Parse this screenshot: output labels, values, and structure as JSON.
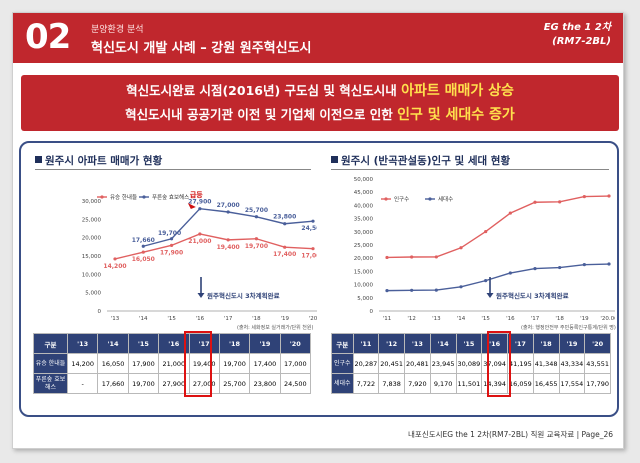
{
  "header": {
    "number": "02",
    "category": "분양환경 분석",
    "title": "혁신도시 개발 사례 – 강원 원주혁신도시",
    "project_line1": "EG the 1 2차",
    "project_line2": "(RM7-2BL)"
  },
  "banner": {
    "line1_prefix": "혁신도시완료 시점(2016년) 구도심 및 혁신도시내 ",
    "line1_highlight": "아파트 매매가 상승",
    "line2_prefix": "혁신도시내 공공기관 이전 및 기업체 이전으로 인한 ",
    "line2_highlight": "인구 및 세대수 증가"
  },
  "left": {
    "title": "원주시 아파트 매매가 현황",
    "callout": "원주혁신도시 3차계획완료",
    "spike_label": "급등",
    "source": "(출처: 세화정보 실거래가/단위 천원)",
    "table": {
      "corner": "구분",
      "years": [
        "'13",
        "'14",
        "'15",
        "'16",
        "'17",
        "'18",
        "'19",
        "'20"
      ],
      "rows": [
        {
          "label": "유승 한내들",
          "cells": [
            "14,200",
            "16,050",
            "17,900",
            "21,000",
            "19,400",
            "19,700",
            "17,400",
            "17,000"
          ]
        },
        {
          "label": "푸른숲 효보해스",
          "cells": [
            "-",
            "17,660",
            "19,700",
            "27,900",
            "27,000",
            "25,700",
            "23,800",
            "24,500"
          ]
        }
      ]
    }
  },
  "right": {
    "title": "원주시 (반곡관설동)인구 및 세대 현황",
    "callout": "원주혁신도시 3차계획완료",
    "source": "(출처: 행정안전부 주민등록인구통계/단위 명)",
    "table": {
      "corner": "구분",
      "years": [
        "'11",
        "'12",
        "'13",
        "'14",
        "'15",
        "'16",
        "'17",
        "'18",
        "'19",
        "'20"
      ],
      "rows": [
        {
          "label": "인구수",
          "cells": [
            "20,287",
            "20,451",
            "20,481",
            "23,945",
            "30,089",
            "37,094",
            "41,195",
            "41,348",
            "43,334",
            "43,551"
          ]
        },
        {
          "label": "세대수",
          "cells": [
            "7,722",
            "7,838",
            "7,920",
            "9,170",
            "11,501",
            "14,394",
            "16,059",
            "16,455",
            "17,554",
            "17,790"
          ]
        }
      ]
    }
  },
  "footer": {
    "text": "내포신도시EG the 1 2차(RM7-2BL) 직원 교육자료 | Page_26"
  },
  "colors": {
    "brand_red": "#c0272d",
    "navy": "#2f4277",
    "series_red": "#e06060",
    "series_blue": "#4a5f9a",
    "highlight_red": "#d11111"
  },
  "chart_data": [
    {
      "type": "line",
      "title": "원주시 아파트 매매가 현황",
      "categories": [
        "'13",
        "'14",
        "'15",
        "'16",
        "'17",
        "'18",
        "'19",
        "'20"
      ],
      "series": [
        {
          "name": "유승 한내들",
          "values": [
            14200,
            16050,
            17900,
            21000,
            19400,
            19700,
            17400,
            17000
          ]
        },
        {
          "name": "푸른숲 효보해스",
          "values": [
            null,
            17660,
            19700,
            27900,
            27000,
            25700,
            23800,
            24500
          ]
        }
      ],
      "yticks": [
        "0",
        "5,000",
        "10,000",
        "15,000",
        "20,000",
        "25,000",
        "30,000"
      ],
      "ylim": [
        0,
        30000
      ],
      "legend": "top-left",
      "grid": false
    },
    {
      "type": "line",
      "title": "원주시 (반곡관설동)인구 및 세대 현황",
      "categories": [
        "'11",
        "'12",
        "'13",
        "'14",
        "'15",
        "'16",
        "'17",
        "'18",
        "'19",
        "'20.06"
      ],
      "series": [
        {
          "name": "인구수",
          "values": [
            20287,
            20451,
            20481,
            23945,
            30089,
            37094,
            41195,
            41348,
            43334,
            43551
          ]
        },
        {
          "name": "세대수",
          "values": [
            7722,
            7838,
            7920,
            9170,
            11501,
            14394,
            16059,
            16455,
            17554,
            17790
          ]
        }
      ],
      "yticks": [
        "0",
        "5,000",
        "10,000",
        "15,000",
        "20,000",
        "25,000",
        "30,000",
        "35,000",
        "40,000",
        "45,000",
        "50,000"
      ],
      "ylim": [
        0,
        50000
      ],
      "legend": "top-left",
      "grid": false
    }
  ]
}
